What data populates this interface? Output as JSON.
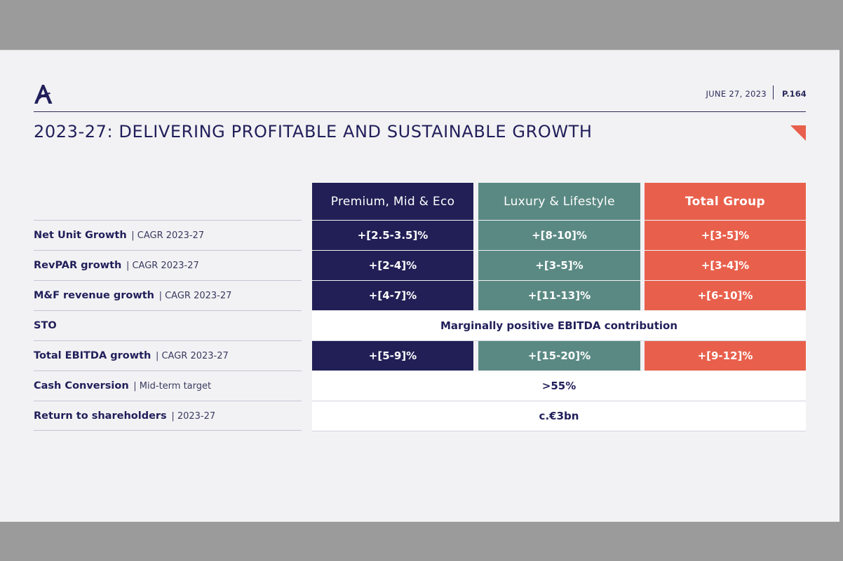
{
  "header": {
    "date": "JUNE 27, 2023",
    "page": "P.164",
    "title": "2023-27: DELIVERING PROFITABLE AND SUSTAINABLE GROWTH"
  },
  "colors": {
    "navy": "#211f55",
    "teal": "#5a8983",
    "coral": "#e8604c",
    "title_text": "#211f5a",
    "slide_bg": "#f2f2f4"
  },
  "icons": {
    "logo": "accor-a-logo-icon",
    "corner": "corner-triangle-icon"
  },
  "table": {
    "columns": [
      "Premium, Mid & Eco",
      "Luxury & Lifestyle",
      "Total Group"
    ],
    "rows": [
      {
        "label": "Net Unit Growth",
        "sub": "| CAGR 2023-27",
        "values": [
          "+[2.5-3.5]%",
          "+[8-10]%",
          "+[3-5]%"
        ]
      },
      {
        "label": "RevPAR growth",
        "sub": "| CAGR 2023-27",
        "values": [
          "+[2-4]%",
          "+[3-5]%",
          "+[3-4]%"
        ]
      },
      {
        "label": "M&F revenue growth",
        "sub": "| CAGR 2023-27",
        "values": [
          "+[4-7]%",
          "+[11-13]%",
          "+[6-10]%"
        ]
      },
      {
        "label": "STO",
        "sub": "",
        "merged": "Marginally positive EBITDA contribution"
      },
      {
        "label": "Total EBITDA growth",
        "sub": "| CAGR 2023-27",
        "values": [
          "+[5-9]%",
          "+[15-20]%",
          "+[9-12]%"
        ]
      },
      {
        "label": "Cash Conversion",
        "sub": "| Mid-term target",
        "merged": ">55%"
      },
      {
        "label": "Return to shareholders",
        "sub": "| 2023-27",
        "merged": "c.€3bn"
      }
    ]
  }
}
